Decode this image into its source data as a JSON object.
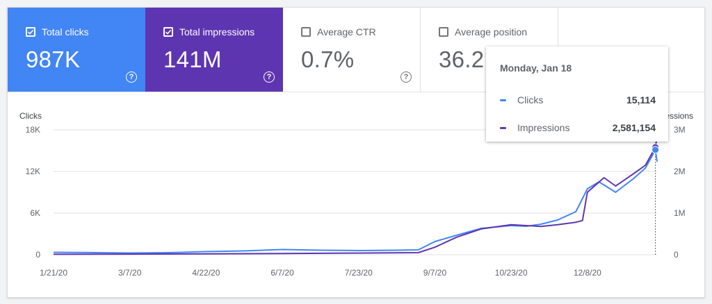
{
  "metrics": {
    "clicks": {
      "label": "Total clicks",
      "value": "987K",
      "checked": true
    },
    "impressions": {
      "label": "Total impressions",
      "value": "141M",
      "checked": true
    },
    "ctr": {
      "label": "Average CTR",
      "value": "0.7%",
      "checked": false
    },
    "position": {
      "label": "Average position",
      "value": "36.2",
      "checked": false
    }
  },
  "icons": {
    "checkbox": "check-icon",
    "help": "help-circle-icon",
    "help_glyph": "?"
  },
  "colors": {
    "clicks": "#4285f4",
    "impressions": "#5e35b1",
    "grid": "#e0e0e0",
    "axis_text": "#5f6368"
  },
  "tooltip": {
    "title": "Monday, Jan 18",
    "rows": [
      {
        "name": "Clicks",
        "value": "15,114"
      },
      {
        "name": "Impressions",
        "value": "2,581,154"
      }
    ]
  },
  "chart_data": {
    "type": "line",
    "left_axis_label": "Clicks",
    "right_axis_label": "Impressions",
    "left_ticks": [
      "0",
      "6K",
      "12K",
      "18K"
    ],
    "right_ticks": [
      "0",
      "1M",
      "2M",
      "3M"
    ],
    "ylim_left": [
      0,
      18000
    ],
    "ylim_right": [
      0,
      3000000
    ],
    "x_ticks": [
      "1/21/20",
      "3/7/20",
      "4/22/20",
      "6/7/20",
      "7/23/20",
      "9/7/20",
      "10/23/20",
      "12/8/20"
    ],
    "xlim": [
      "2020-01-21",
      "2021-01-19"
    ],
    "grid": true,
    "hover_date": "2021-01-18",
    "series": [
      {
        "name": "Clicks",
        "x": [
          "2020-01-21",
          "2020-02-15",
          "2020-03-07",
          "2020-03-31",
          "2020-04-22",
          "2020-05-15",
          "2020-06-07",
          "2020-07-01",
          "2020-07-23",
          "2020-08-15",
          "2020-08-28",
          "2020-09-07",
          "2020-09-20",
          "2020-10-05",
          "2020-10-23",
          "2020-11-01",
          "2020-11-10",
          "2020-11-20",
          "2020-12-01",
          "2020-12-08",
          "2020-12-15",
          "2020-12-25",
          "2021-01-05",
          "2021-01-12",
          "2021-01-18",
          "2021-01-19"
        ],
        "y": [
          350,
          300,
          250,
          300,
          450,
          550,
          750,
          650,
          600,
          650,
          700,
          1900,
          2800,
          3800,
          4200,
          4100,
          4400,
          5000,
          6200,
          9500,
          10500,
          9000,
          11000,
          12500,
          15114,
          13400
        ]
      },
      {
        "name": "Impressions",
        "x": [
          "2020-01-21",
          "2020-03-07",
          "2020-04-22",
          "2020-06-07",
          "2020-07-23",
          "2020-08-28",
          "2020-09-07",
          "2020-09-20",
          "2020-10-05",
          "2020-10-23",
          "2020-11-10",
          "2020-11-20",
          "2020-12-01",
          "2020-12-05",
          "2020-12-08",
          "2020-12-18",
          "2020-12-25",
          "2021-01-05",
          "2021-01-12",
          "2021-01-18",
          "2021-01-19"
        ],
        "y": [
          10000,
          15000,
          20000,
          30000,
          40000,
          50000,
          180000,
          420000,
          620000,
          720000,
          680000,
          720000,
          780000,
          820000,
          1500000,
          1850000,
          1650000,
          1950000,
          2150000,
          2581154,
          2800000
        ]
      }
    ]
  }
}
